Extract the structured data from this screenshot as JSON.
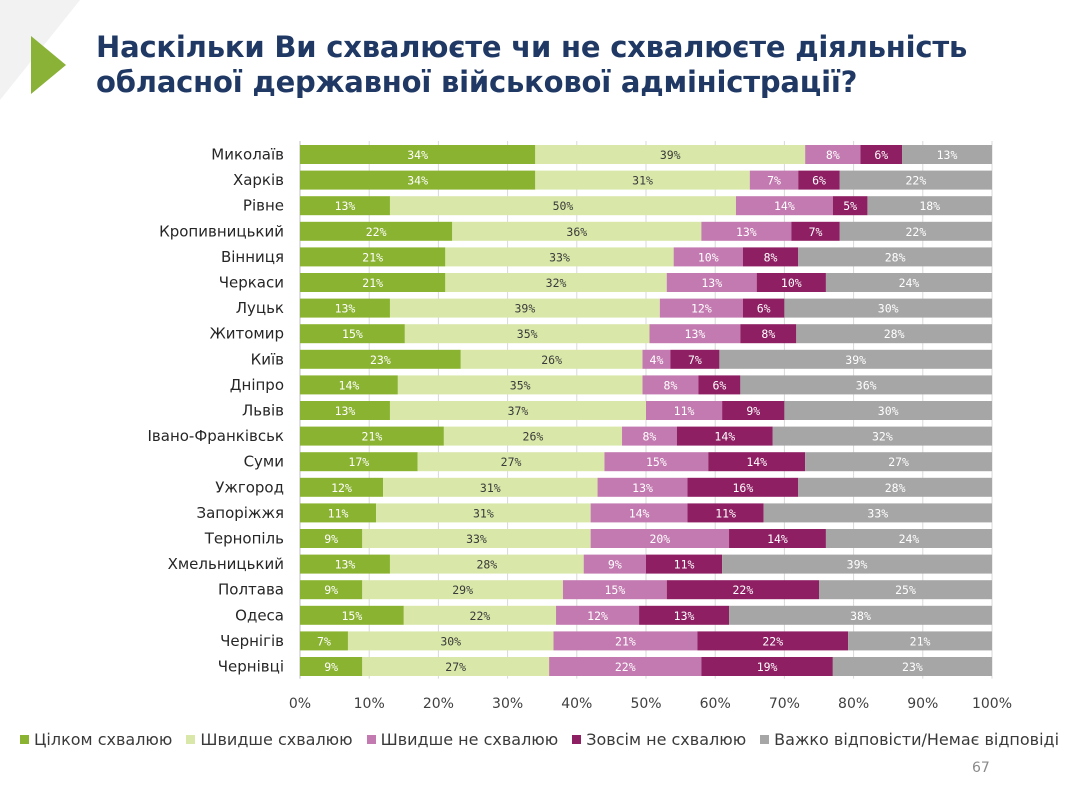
{
  "title": {
    "line1": "Наскільки Ви схвалюєте чи не схвалюєте діяльність",
    "line2": "обласної державної військової адміністрації?"
  },
  "page_number": "67",
  "colors": {
    "title": "#1f3864",
    "series": [
      "#8bb332",
      "#d9e8a9",
      "#c37ab0",
      "#8e1f63",
      "#a6a6a6"
    ],
    "gridline": "#d9d9d9",
    "accent_arrow": "#8ab237"
  },
  "icons": [
    "triangle-arrow-icon"
  ],
  "chart_data": {
    "type": "bar",
    "orientation": "horizontal",
    "stacked": true,
    "percent": true,
    "xlim": [
      0,
      100
    ],
    "x_ticks": [
      "0%",
      "10%",
      "20%",
      "30%",
      "40%",
      "50%",
      "60%",
      "70%",
      "80%",
      "90%",
      "100%"
    ],
    "grid": true,
    "legend_position": "bottom",
    "categories": [
      "Миколаїв",
      "Харків",
      "Рівне",
      "Кропивницький",
      "Вінниця",
      "Черкаси",
      "Луцьк",
      "Житомир",
      "Київ",
      "Дніпро",
      "Львів",
      "Івано-Франківськ",
      "Суми",
      "Ужгород",
      "Запоріжжя",
      "Тернопіль",
      "Хмельницький",
      "Полтава",
      "Одеса",
      "Чернігів",
      "Чернівці"
    ],
    "series": [
      {
        "name": "Цілком схвалюю",
        "values": [
          34,
          34,
          13,
          22,
          21,
          21,
          13,
          15,
          23,
          14,
          13,
          21,
          17,
          12,
          11,
          9,
          13,
          9,
          15,
          7,
          9
        ]
      },
      {
        "name": "Швидше схвалюю",
        "values": [
          39,
          31,
          50,
          36,
          33,
          32,
          39,
          35,
          26,
          35,
          37,
          26,
          27,
          31,
          31,
          33,
          28,
          29,
          22,
          30,
          27
        ]
      },
      {
        "name": "Швидше не схвалюю",
        "values": [
          8,
          7,
          14,
          13,
          10,
          13,
          12,
          13,
          4,
          8,
          11,
          8,
          15,
          13,
          14,
          20,
          9,
          15,
          12,
          21,
          22
        ]
      },
      {
        "name": "Зовсім не схвалюю",
        "values": [
          6,
          6,
          5,
          7,
          8,
          10,
          6,
          8,
          7,
          6,
          9,
          14,
          14,
          16,
          11,
          14,
          11,
          22,
          13,
          22,
          19
        ]
      },
      {
        "name": "Важко відповісти/Немає відповіді",
        "values": [
          13,
          22,
          18,
          22,
          28,
          24,
          30,
          28,
          39,
          36,
          30,
          32,
          27,
          28,
          33,
          24,
          39,
          25,
          38,
          21,
          23
        ]
      }
    ]
  }
}
